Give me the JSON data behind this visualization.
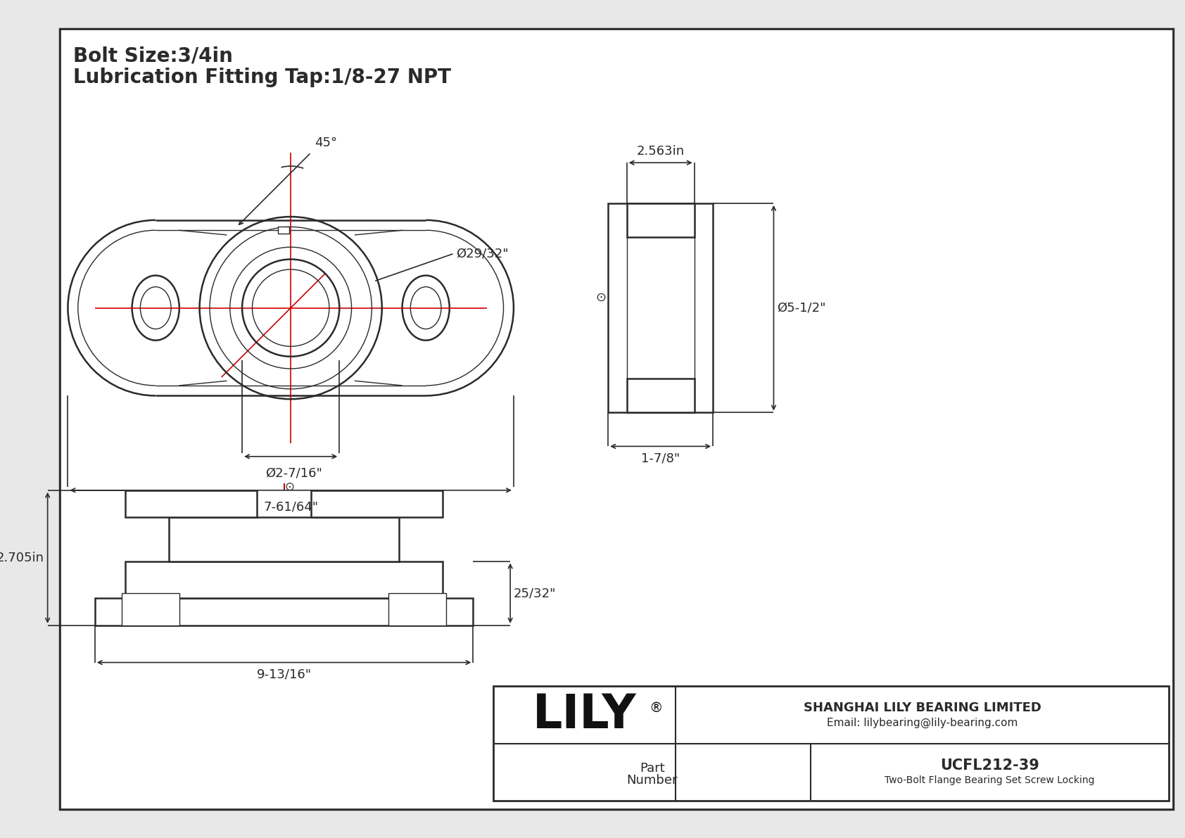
{
  "bg_color": "#e8e8e8",
  "white": "#ffffff",
  "line_color": "#2a2a2a",
  "red_color": "#cc0000",
  "title_line1": "Bolt Size:3/4in",
  "title_line2": "Lubrication Fitting Tap:1/8-27 NPT",
  "dim_29_32": "Ø29/32\"",
  "dim_2_7_16": "Ø2-7/16\"",
  "dim_7_61_64": "7-61/64\"",
  "dim_45": "45°",
  "dim_2_563": "2.563in",
  "dim_5_1_2": "Ø5-1/2\"",
  "dim_1_7_8": "1-7/8\"",
  "dim_2_705": "2.705in",
  "dim_9_13_16": "9-13/16\"",
  "dim_25_32": "25/32\"",
  "part_number": "UCFL212-39",
  "part_desc": "Two-Bolt Flange Bearing Set Screw Locking",
  "company_name": "LILY",
  "company_reg": "®",
  "company_full": "SHANGHAI LILY BEARING LIMITED",
  "company_email": "Email: lilybearing@lily-bearing.com",
  "part_label_1": "Part",
  "part_label_2": "Number",
  "lw_main": 1.8,
  "lw_thin": 1.0,
  "lw_dim": 1.2,
  "lw_border": 2.5,
  "lw_cl": 1.2
}
